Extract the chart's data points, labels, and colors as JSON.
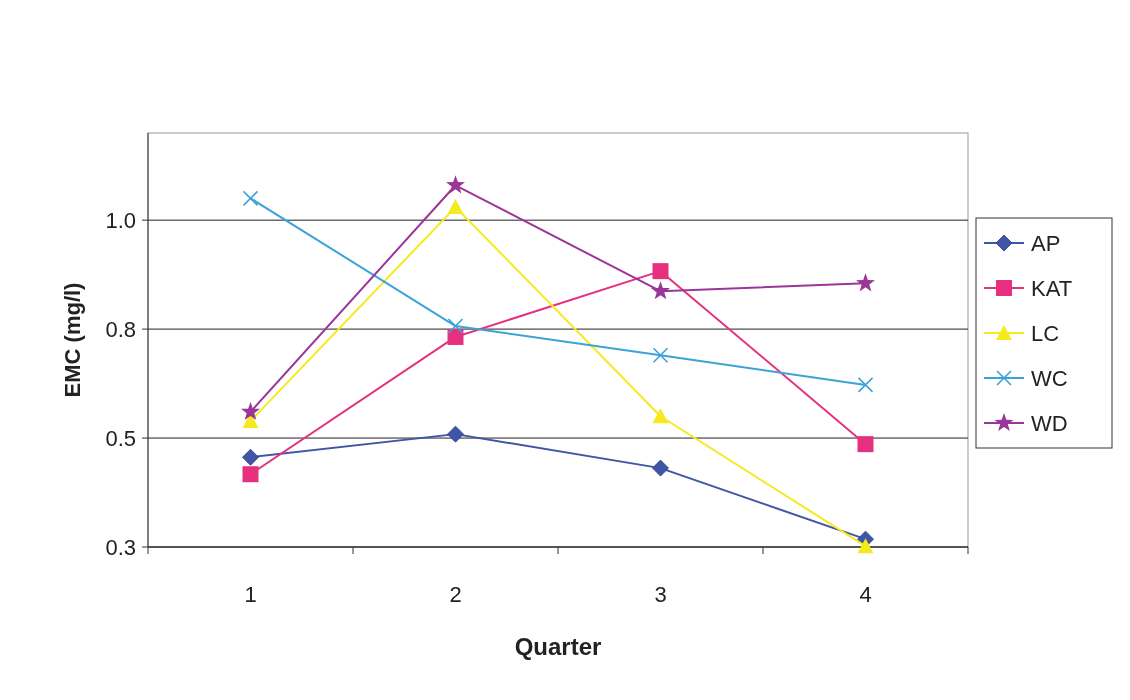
{
  "chart_data": {
    "type": "line",
    "xlabel": "Quarter",
    "ylabel": "EMC (mg/l)",
    "categories": [
      "1",
      "2",
      "3",
      "4"
    ],
    "series": [
      {
        "name": "AP",
        "color": "#3f55a8",
        "marker": "diamond",
        "values": [
          0.456,
          0.509,
          0.431,
          0.268
        ]
      },
      {
        "name": "KAT",
        "color": "#e6307f",
        "marker": "square",
        "values": [
          0.417,
          0.732,
          0.883,
          0.486
        ]
      },
      {
        "name": "LC",
        "color": "#f5ea1e",
        "marker": "triangle",
        "values": [
          0.539,
          1.03,
          0.55,
          0.252
        ]
      },
      {
        "name": "WC",
        "color": "#3aa3d8",
        "marker": "cross",
        "values": [
          1.05,
          0.757,
          0.69,
          0.622
        ]
      },
      {
        "name": "WD",
        "color": "#9b3598",
        "marker": "star",
        "values": [
          0.56,
          1.08,
          0.837,
          0.855
        ]
      }
    ],
    "ylim": [
      0.25,
      1.2
    ],
    "yticks": [
      {
        "value": 0.25,
        "label": "0.3"
      },
      0.5,
      {
        "value": 0.75,
        "label": "0.8"
      },
      {
        "value": 1,
        "label": "1.0"
      }
    ],
    "grid": "y",
    "legend": "right"
  }
}
